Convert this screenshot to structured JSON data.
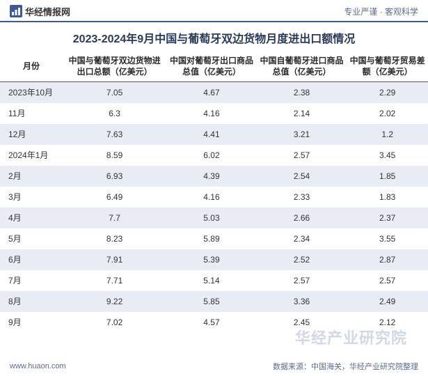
{
  "header": {
    "brand_text": "华经情报网",
    "slogan": "专业严谨 · 客观科学",
    "brand_color": "#333333",
    "slogan_color": "#5b6b8f",
    "icon_bg": "#3a5a9a"
  },
  "title": "2023-2024年9月中国与葡萄牙双边货物月度进出口额情况",
  "table": {
    "type": "table",
    "header_border_color": "#3a5a9a",
    "odd_row_bg": "#e8ecf5",
    "even_row_bg": "#ffffff",
    "font_size": 12,
    "text_color": "#333333",
    "columns": [
      "月份",
      "中国与葡萄牙双边货物进出口总额（亿美元）",
      "中国对葡萄牙出口商品总值（亿美元）",
      "中国自葡萄牙进口商品总值（亿美元）",
      "中国与葡萄牙贸易差额（亿美元）"
    ],
    "rows": [
      [
        "2023年10月",
        "7.05",
        "4.67",
        "2.38",
        "2.29"
      ],
      [
        "11月",
        "6.3",
        "4.16",
        "2.14",
        "2.02"
      ],
      [
        "12月",
        "7.63",
        "4.41",
        "3.21",
        "1.2"
      ],
      [
        "2024年1月",
        "8.59",
        "6.02",
        "2.57",
        "3.45"
      ],
      [
        "2月",
        "6.93",
        "4.39",
        "2.54",
        "1.85"
      ],
      [
        "3月",
        "6.49",
        "4.16",
        "2.33",
        "1.83"
      ],
      [
        "4月",
        "7.7",
        "5.03",
        "2.66",
        "2.37"
      ],
      [
        "5月",
        "8.23",
        "5.89",
        "2.34",
        "3.55"
      ],
      [
        "6月",
        "7.91",
        "5.39",
        "2.52",
        "2.87"
      ],
      [
        "7月",
        "7.71",
        "5.14",
        "2.57",
        "2.57"
      ],
      [
        "8月",
        "9.22",
        "5.85",
        "3.36",
        "2.49"
      ],
      [
        "9月",
        "7.02",
        "4.57",
        "2.45",
        "2.12"
      ]
    ]
  },
  "footer": {
    "url": "www.huaon.com",
    "source": "数据来源：中国海关，华经产业研究院整理"
  },
  "watermark": "华经产业研究院",
  "colors": {
    "divider": "#3a5a9a",
    "title_color": "#2a3a5a",
    "watermark_color": "rgba(120,140,180,0.35)"
  }
}
